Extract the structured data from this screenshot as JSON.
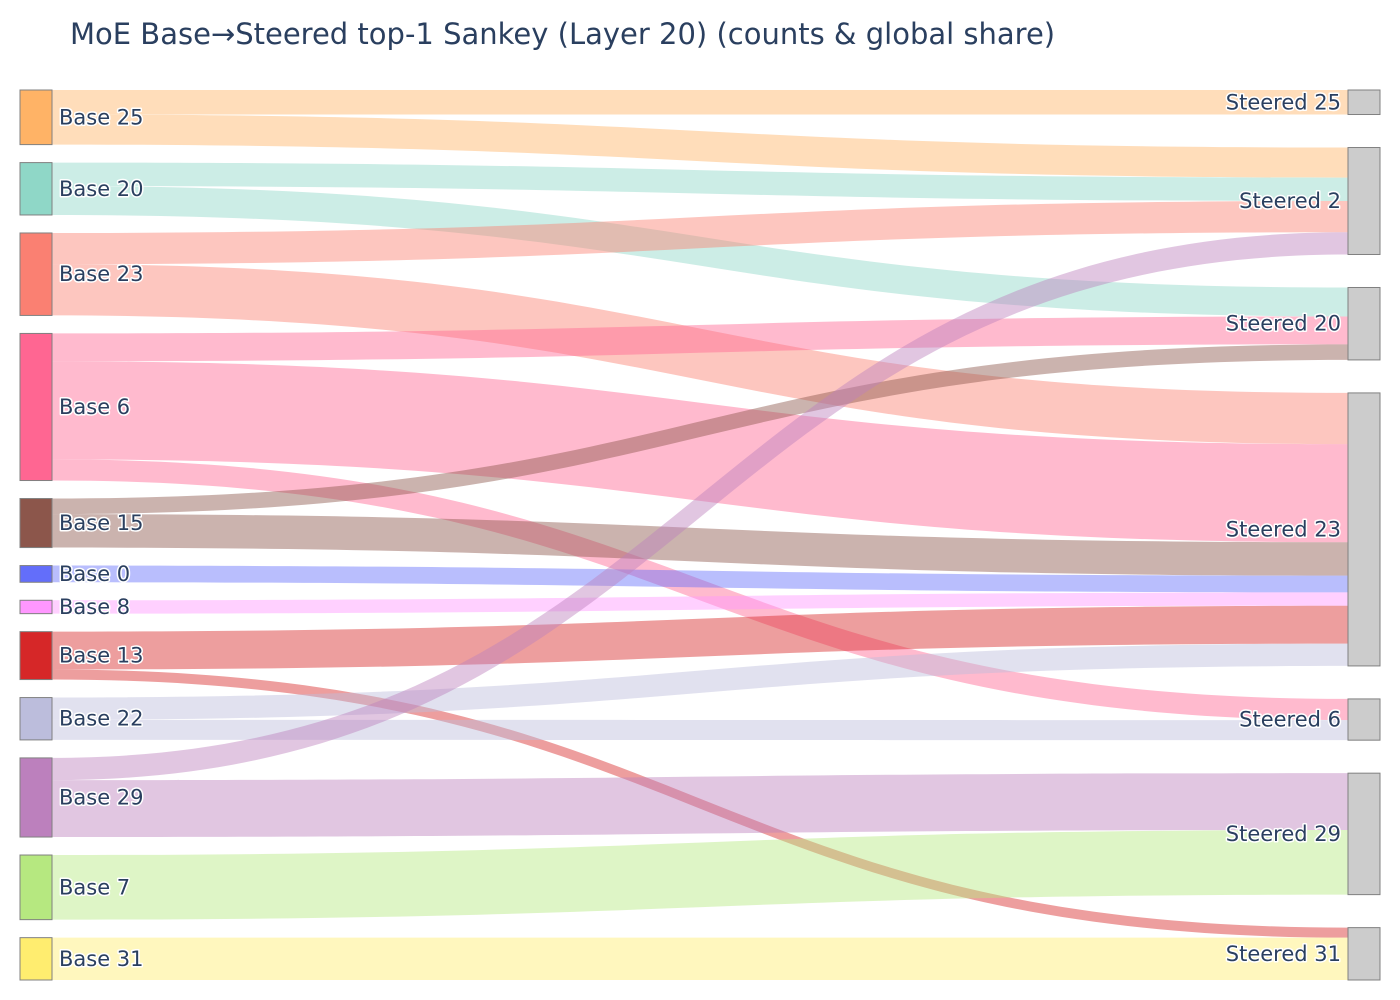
{
  "chart_data": {
    "type": "sankey",
    "title": "MoE Base→Steered top-1 Sankey (Layer 20) (counts & global share)",
    "source_nodes": [
      {
        "id": "b25",
        "label": "Base 25",
        "color": "#ffb366"
      },
      {
        "id": "b20",
        "label": "Base 20",
        "color": "#8fd7c7"
      },
      {
        "id": "b23",
        "label": "Base 23",
        "color": "#fa8072"
      },
      {
        "id": "b6",
        "label": "Base 6",
        "color": "#ff6692"
      },
      {
        "id": "b15",
        "label": "Base 15",
        "color": "#8c564b"
      },
      {
        "id": "b0",
        "label": "Base 0",
        "color": "#636efa"
      },
      {
        "id": "b8",
        "label": "Base 8",
        "color": "#ff97ff"
      },
      {
        "id": "b13",
        "label": "Base 13",
        "color": "#d62728"
      },
      {
        "id": "b22",
        "label": "Base 22",
        "color": "#bcbddc"
      },
      {
        "id": "b29",
        "label": "Base 29",
        "color": "#bc80bd"
      },
      {
        "id": "b7",
        "label": "Base 7",
        "color": "#b6e880"
      },
      {
        "id": "b31",
        "label": "Base 31",
        "color": "#ffed6f"
      }
    ],
    "target_nodes": [
      {
        "id": "s25",
        "label": "Steered 25",
        "color": "#cccccc"
      },
      {
        "id": "s2",
        "label": "Steered 2",
        "color": "#cccccc"
      },
      {
        "id": "s20",
        "label": "Steered 20",
        "color": "#cccccc"
      },
      {
        "id": "s23",
        "label": "Steered 23",
        "color": "#cccccc"
      },
      {
        "id": "s6",
        "label": "Steered 6",
        "color": "#cccccc"
      },
      {
        "id": "s29",
        "label": "Steered 29",
        "color": "#cccccc"
      },
      {
        "id": "s31",
        "label": "Steered 31",
        "color": "#cccccc"
      }
    ],
    "links": [
      {
        "source": "b25",
        "target": "s25",
        "value": 22
      },
      {
        "source": "b25",
        "target": "s2",
        "value": 27
      },
      {
        "source": "b20",
        "target": "s2",
        "value": 21
      },
      {
        "source": "b20",
        "target": "s20",
        "value": 26
      },
      {
        "source": "b23",
        "target": "s2",
        "value": 28
      },
      {
        "source": "b23",
        "target": "s23",
        "value": 46
      },
      {
        "source": "b6",
        "target": "s20",
        "value": 25
      },
      {
        "source": "b6",
        "target": "s23",
        "value": 88
      },
      {
        "source": "b6",
        "target": "s6",
        "value": 19
      },
      {
        "source": "b15",
        "target": "s20",
        "value": 14
      },
      {
        "source": "b15",
        "target": "s23",
        "value": 30
      },
      {
        "source": "b0",
        "target": "s23",
        "value": 15
      },
      {
        "source": "b8",
        "target": "s23",
        "value": 12
      },
      {
        "source": "b13",
        "target": "s23",
        "value": 34
      },
      {
        "source": "b13",
        "target": "s31",
        "value": 9
      },
      {
        "source": "b22",
        "target": "s23",
        "value": 20
      },
      {
        "source": "b22",
        "target": "s6",
        "value": 18
      },
      {
        "source": "b29",
        "target": "s2",
        "value": 20
      },
      {
        "source": "b29",
        "target": "s29",
        "value": 51
      },
      {
        "source": "b7",
        "target": "s29",
        "value": 58
      },
      {
        "source": "b31",
        "target": "s31",
        "value": 38
      }
    ]
  }
}
